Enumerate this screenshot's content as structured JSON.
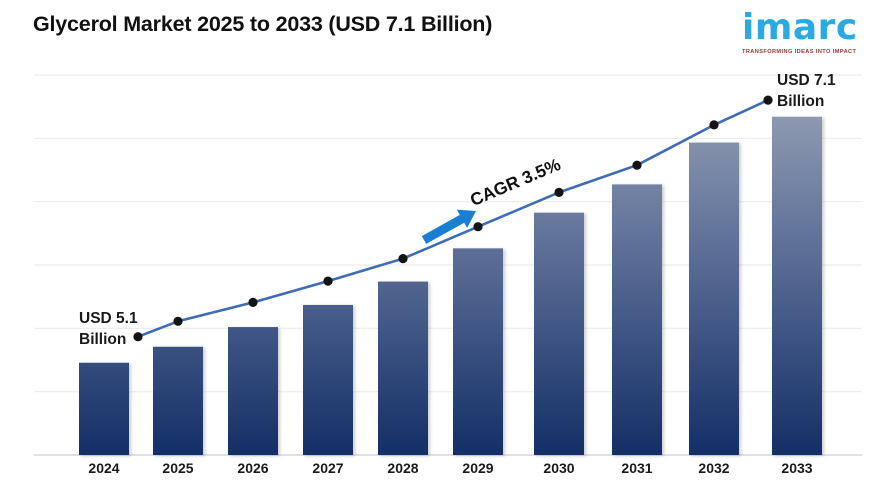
{
  "header": {
    "title": "Glycerol Market 2025 to 2033 (USD 7.1 Billion)"
  },
  "logo": {
    "name": "imarc",
    "tagline": "TRANSFORMING IDEAS INTO IMPACT",
    "brand_color": "#29abe2",
    "tagline_color": "#9a3532"
  },
  "chart_data": {
    "type": "bar",
    "overlay": "line",
    "title": "Glycerol Market 2025 to 2033 (USD 7.1 Billion)",
    "unit": "USD Billion",
    "categories": [
      "2024",
      "2025",
      "2026",
      "2027",
      "2028",
      "2029",
      "2030",
      "2031",
      "2032",
      "2033"
    ],
    "values": [
      5.1,
      5.23,
      5.39,
      5.57,
      5.76,
      6.03,
      6.32,
      6.55,
      6.89,
      7.1
    ],
    "labeled_points": {
      "2024": "USD 5.1 Billion",
      "2033": "USD 7.1 Billion"
    },
    "annotations": {
      "start_line1": "USD 5.1",
      "start_line2": "Billion",
      "end_line1": "USD 7.1",
      "end_line2": "Billion",
      "cagr": "CAGR 3.5%"
    },
    "xlabel": "",
    "ylabel": "",
    "grid": true,
    "legend": false,
    "colors": {
      "bar_gradient_top": "#9ba6b7",
      "bar_gradient_mid": "#5e7098",
      "bar_gradient_bottom": "#132f66",
      "line": "#3e6cb5",
      "dot": "#141414",
      "arrow": "#1b7ed5",
      "gridline": "#ececec",
      "axis_line": "#d7d7d7"
    }
  }
}
